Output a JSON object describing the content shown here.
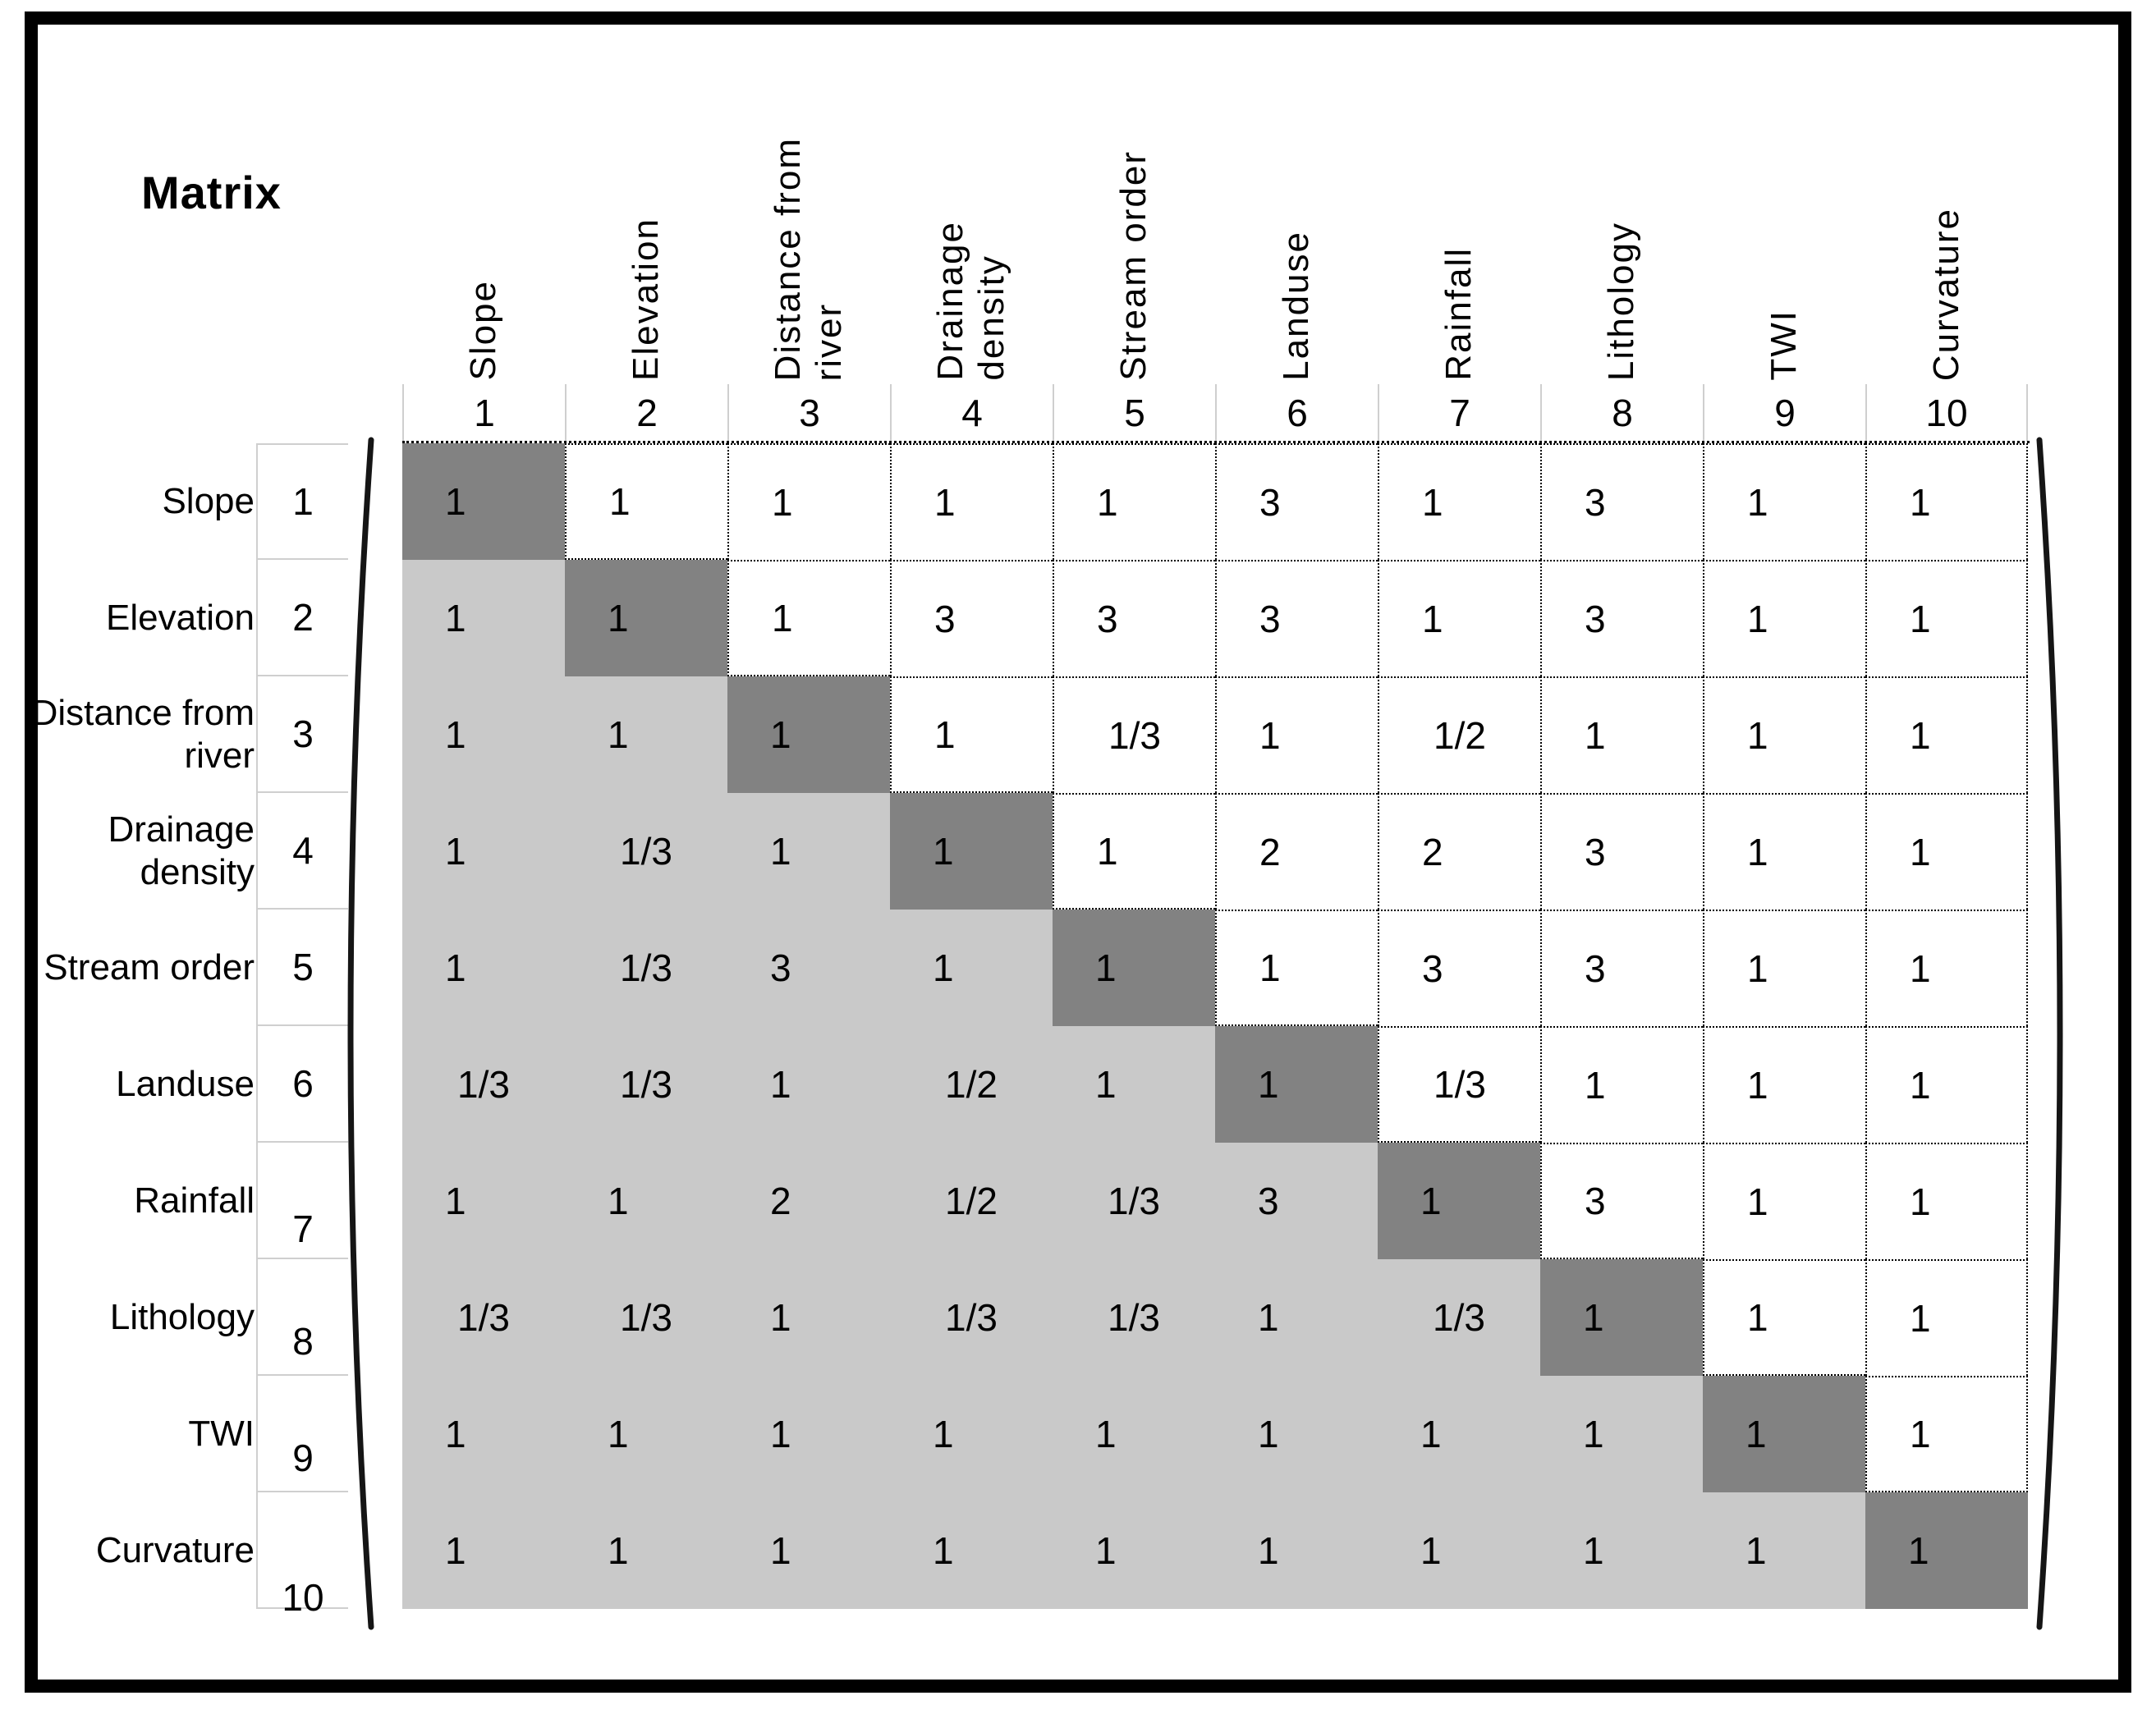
{
  "chart_data": {
    "type": "table",
    "title": "Matrix",
    "factors": [
      "Slope",
      "Elevation",
      "Distance from\nriver",
      "Drainage\ndensity",
      "Stream order",
      "Landuse",
      "Rainfall",
      "Lithology",
      "TWI",
      "Curvature"
    ],
    "col_numbers": [
      "1",
      "2",
      "3",
      "4",
      "5",
      "6",
      "7",
      "8",
      "9",
      "10"
    ],
    "row_numbers": [
      "1",
      "2",
      "3",
      "4",
      "5",
      "6",
      "7",
      "8",
      "9",
      "10"
    ],
    "matrix": [
      [
        "1",
        "1",
        "1",
        "1",
        "1",
        "3",
        "1",
        "3",
        "1",
        "1"
      ],
      [
        "1",
        "1",
        "1",
        "3",
        "3",
        "3",
        "1",
        "3",
        "1",
        "1"
      ],
      [
        "1",
        "1",
        "1",
        "1",
        "1/3",
        "1",
        "1/2",
        "1",
        "1",
        "1"
      ],
      [
        "1",
        "1/3",
        "1",
        "1",
        "1",
        "2",
        "2",
        "3",
        "1",
        "1"
      ],
      [
        "1",
        "1/3",
        "3",
        "1",
        "1",
        "1",
        "3",
        "3",
        "1",
        "1"
      ],
      [
        "1/3",
        "1/3",
        "1",
        "1/2",
        "1",
        "1",
        "1/3",
        "1",
        "1",
        "1"
      ],
      [
        "1",
        "1",
        "2",
        "1/2",
        "1/3",
        "3",
        "1",
        "3",
        "1",
        "1"
      ],
      [
        "1/3",
        "1/3",
        "1",
        "1/3",
        "1/3",
        "1",
        "1/3",
        "1",
        "1",
        "1"
      ],
      [
        "1",
        "1",
        "1",
        "1",
        "1",
        "1",
        "1",
        "1",
        "1",
        "1"
      ],
      [
        "1",
        "1",
        "1",
        "1",
        "1",
        "1",
        "1",
        "1",
        "1",
        "1"
      ]
    ],
    "colors": {
      "diagonal_cell": "#828282",
      "lower_triangle_cell": "#c9c9c9",
      "upper_triangle_cell": "#ffffff"
    }
  }
}
